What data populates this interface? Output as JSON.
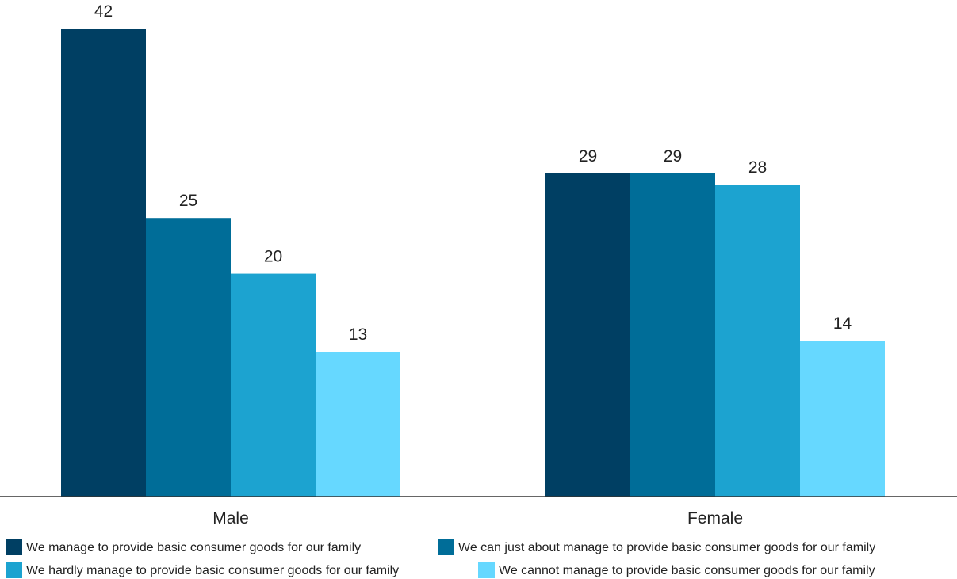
{
  "chart_data": {
    "type": "bar",
    "categories": [
      "Male",
      "Female"
    ],
    "series": [
      {
        "name": "We manage to provide basic consumer goods for our family",
        "values": [
          42,
          29
        ],
        "color": "#003f63"
      },
      {
        "name": "We can just about manage to provide basic consumer goods for our family",
        "values": [
          25,
          29
        ],
        "color": "#006d98"
      },
      {
        "name": "We hardly manage to provide basic consumer goods for our family",
        "values": [
          20,
          28
        ],
        "color": "#1ca3d0"
      },
      {
        "name": "We cannot manage to provide basic consumer goods for our family",
        "values": [
          13,
          14
        ],
        "color": "#66d8ff"
      }
    ],
    "ylim": [
      0,
      42
    ],
    "grid": false,
    "legend_position": "bottom"
  }
}
